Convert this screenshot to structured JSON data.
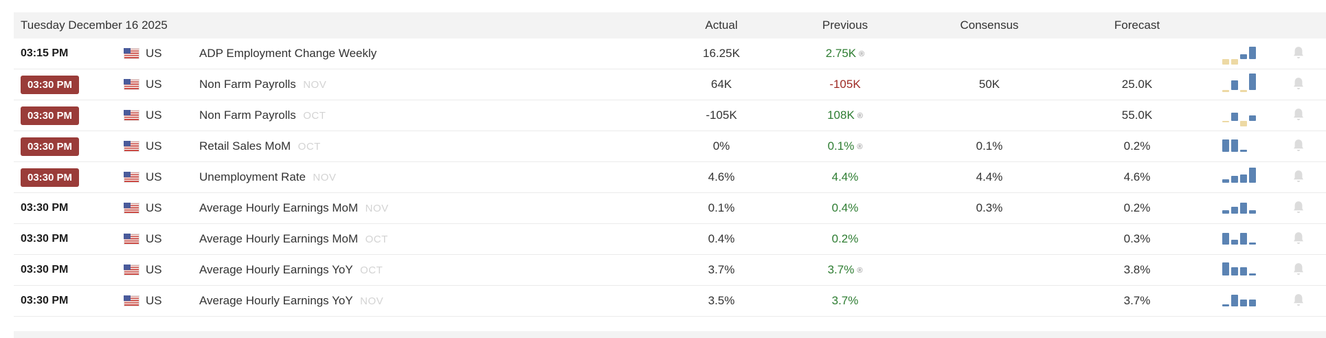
{
  "calendar": {
    "date_header": "Tuesday December 16 2025",
    "columns": {
      "actual": "Actual",
      "previous": "Previous",
      "consensus": "Consensus",
      "forecast": "Forecast"
    },
    "revised_symbol": "®",
    "colors": {
      "highlight_badge": "#9a3c39",
      "positive_value": "#2e7d32",
      "negative_value": "#9e2b25",
      "spark_blue": "#5b83b3",
      "spark_tan": "#edd9a4",
      "header_background": "#f3f3f3",
      "bell_gray": "#dcdcdc"
    },
    "rows": [
      {
        "time": "03:15 PM",
        "highlighted": false,
        "country": "US",
        "event": "ADP Employment Change Weekly",
        "month": "",
        "actual": "16.25K",
        "previous": "2.75K",
        "previous_trend": "positive",
        "revised": true,
        "consensus": "",
        "forecast": "",
        "spark": [
          {
            "v": -2.0,
            "c": "tan"
          },
          {
            "v": -2.0,
            "c": "tan"
          },
          {
            "v": 1.2,
            "c": "blue"
          },
          {
            "v": 3.2,
            "c": "blue"
          }
        ]
      },
      {
        "time": "03:30 PM",
        "highlighted": true,
        "country": "US",
        "event": "Non Farm Payrolls",
        "month": "NOV",
        "actual": "64K",
        "previous": "-105K",
        "previous_trend": "negative",
        "revised": false,
        "consensus": "50K",
        "forecast": "25.0K",
        "spark": [
          {
            "v": -0.8,
            "c": "tan"
          },
          {
            "v": 2.6,
            "c": "blue"
          },
          {
            "v": -0.8,
            "c": "tan"
          },
          {
            "v": 4.3,
            "c": "blue"
          }
        ]
      },
      {
        "time": "03:30 PM",
        "highlighted": true,
        "country": "US",
        "event": "Non Farm Payrolls",
        "month": "OCT",
        "actual": "-105K",
        "previous": "108K",
        "previous_trend": "positive",
        "revised": true,
        "consensus": "",
        "forecast": "55.0K",
        "spark": [
          {
            "v": -0.5,
            "c": "tan"
          },
          {
            "v": 2.2,
            "c": "blue"
          },
          {
            "v": -2.0,
            "c": "tan"
          },
          {
            "v": 1.5,
            "c": "blue"
          }
        ]
      },
      {
        "time": "03:30 PM",
        "highlighted": true,
        "country": "US",
        "event": "Retail Sales MoM",
        "month": "OCT",
        "actual": "0%",
        "previous": "0.1%",
        "previous_trend": "positive",
        "revised": true,
        "consensus": "0.1%",
        "forecast": "0.2%",
        "spark": [
          {
            "v": 3.3,
            "c": "blue"
          },
          {
            "v": 3.3,
            "c": "blue"
          },
          {
            "v": 0.6,
            "c": "blue"
          }
        ]
      },
      {
        "time": "03:30 PM",
        "highlighted": true,
        "country": "US",
        "event": "Unemployment Rate",
        "month": "NOV",
        "actual": "4.6%",
        "previous": "4.4%",
        "previous_trend": "positive",
        "revised": false,
        "consensus": "4.4%",
        "forecast": "4.6%",
        "spark": [
          {
            "v": 0.9,
            "c": "blue"
          },
          {
            "v": 1.8,
            "c": "blue"
          },
          {
            "v": 2.1,
            "c": "blue"
          },
          {
            "v": 4.0,
            "c": "blue"
          }
        ]
      },
      {
        "time": "03:30 PM",
        "highlighted": false,
        "country": "US",
        "event": "Average Hourly Earnings MoM",
        "month": "NOV",
        "actual": "0.1%",
        "previous": "0.4%",
        "previous_trend": "positive",
        "revised": false,
        "consensus": "0.3%",
        "forecast": "0.2%",
        "spark": [
          {
            "v": 0.9,
            "c": "blue"
          },
          {
            "v": 1.8,
            "c": "blue"
          },
          {
            "v": 2.9,
            "c": "blue"
          },
          {
            "v": 0.9,
            "c": "blue"
          }
        ]
      },
      {
        "time": "03:30 PM",
        "highlighted": false,
        "country": "US",
        "event": "Average Hourly Earnings MoM",
        "month": "OCT",
        "actual": "0.4%",
        "previous": "0.2%",
        "previous_trend": "positive",
        "revised": false,
        "consensus": "",
        "forecast": "0.3%",
        "spark": [
          {
            "v": 3.1,
            "c": "blue"
          },
          {
            "v": 1.3,
            "c": "blue"
          },
          {
            "v": 3.1,
            "c": "blue"
          },
          {
            "v": 0.5,
            "c": "blue"
          }
        ]
      },
      {
        "time": "03:30 PM",
        "highlighted": false,
        "country": "US",
        "event": "Average Hourly Earnings YoY",
        "month": "OCT",
        "actual": "3.7%",
        "previous": "3.7%",
        "previous_trend": "positive",
        "revised": true,
        "consensus": "",
        "forecast": "3.8%",
        "spark": [
          {
            "v": 3.5,
            "c": "blue"
          },
          {
            "v": 2.1,
            "c": "blue"
          },
          {
            "v": 2.1,
            "c": "blue"
          },
          {
            "v": 0.5,
            "c": "blue"
          }
        ]
      },
      {
        "time": "03:30 PM",
        "highlighted": false,
        "country": "US",
        "event": "Average Hourly Earnings YoY",
        "month": "NOV",
        "actual": "3.5%",
        "previous": "3.7%",
        "previous_trend": "positive",
        "revised": false,
        "consensus": "",
        "forecast": "3.7%",
        "spark": [
          {
            "v": 0.6,
            "c": "blue"
          },
          {
            "v": 3.1,
            "c": "blue"
          },
          {
            "v": 1.9,
            "c": "blue"
          },
          {
            "v": 1.9,
            "c": "blue"
          }
        ]
      }
    ]
  }
}
